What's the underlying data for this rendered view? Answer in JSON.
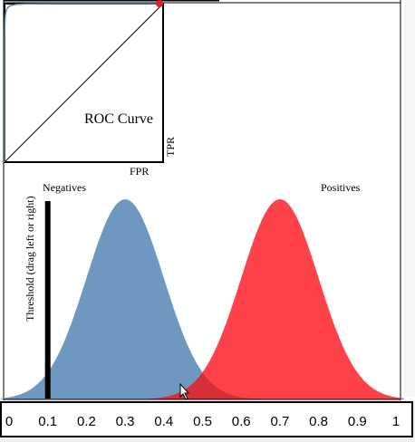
{
  "roc": {
    "title": "ROC Curve",
    "x_label": "FPR",
    "y_label": "TPR"
  },
  "distributions": {
    "negatives_label": "Negatives",
    "positives_label": "Positives",
    "negatives_mean": 0.3,
    "positives_mean": 0.7,
    "sd": 0.1,
    "negatives_color": "#6f98c0",
    "positives_color": "#ff414a",
    "overlap_color": "#d72f3a"
  },
  "threshold": {
    "label": "Threshold (drag left or right)",
    "value": 0.1
  },
  "axis": {
    "ticks": [
      "0",
      "0.1",
      "0.2",
      "0.3",
      "0.4",
      "0.5",
      "0.6",
      "0.7",
      "0.8",
      "0.9",
      "1"
    ]
  },
  "cursor": {
    "icon": "pointer-cursor-icon"
  },
  "chart_data": {
    "type": "area",
    "title": "ROC Curve",
    "xlabel": "FPR",
    "ylabel": "TPR",
    "xlim": [
      0,
      1
    ],
    "series": [
      {
        "name": "Negatives",
        "mean": 0.3,
        "sd": 0.1
      },
      {
        "name": "Positives",
        "mean": 0.7,
        "sd": 0.1
      }
    ]
  }
}
